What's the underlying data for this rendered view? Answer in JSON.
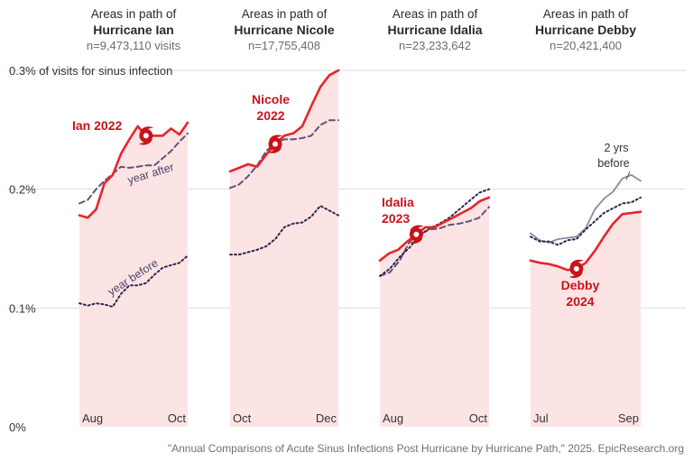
{
  "chart_data": {
    "type": "line",
    "ylabel": "0.3% of visits for sinus infection",
    "ylim": [
      0,
      0.3
    ],
    "yticks": [
      {
        "value": 0,
        "label": "0%"
      },
      {
        "value": 0.1,
        "label": "0.1%"
      },
      {
        "value": 0.2,
        "label": "0.2%"
      },
      {
        "value": 0.3,
        "label": "0.3% of visits for sinus infection"
      }
    ],
    "colors": {
      "current": "#e8242b",
      "after": "#5c5478",
      "before": "#2b2650",
      "two_years": "#8a8a9e",
      "fill": "#fde4e4",
      "highlight": "#c8131b"
    },
    "panels": [
      {
        "title_line1": "Areas in path of",
        "title_line2": "Hurricane Ian",
        "n": "n=9,473,110 visits",
        "x_start_label": "Aug",
        "x_end_label": "Oct",
        "label": "Ian 2022",
        "series": [
          {
            "name": "2022 (current)",
            "style": "current",
            "values": [
              0.178,
              0.176,
              0.183,
              0.205,
              0.212,
              0.23,
              0.242,
              0.253,
              0.245,
              0.245,
              0.245,
              0.251,
              0.246,
              0.256
            ]
          },
          {
            "name": "year after",
            "style": "after",
            "values": [
              0.188,
              0.191,
              0.2,
              0.207,
              0.213,
              0.219,
              0.218,
              0.219,
              0.22,
              0.22,
              0.226,
              0.232,
              0.24,
              0.247
            ]
          },
          {
            "name": "year before",
            "style": "before",
            "values": [
              0.104,
              0.102,
              0.104,
              0.103,
              0.101,
              0.112,
              0.119,
              0.119,
              0.121,
              0.128,
              0.134,
              0.136,
              0.138,
              0.144
            ]
          }
        ],
        "series_labels": [
          {
            "text": "year after",
            "series": 1,
            "at": 0.68
          },
          {
            "text": "year before",
            "series": 2,
            "at": 0.5
          }
        ]
      },
      {
        "title_line1": "Areas in path of",
        "title_line2": "Hurricane Nicole",
        "n": "n=17,755,408",
        "x_start_label": "Oct",
        "x_end_label": "Dec",
        "label": "Nicole 2022",
        "series": [
          {
            "name": "2022 (current)",
            "style": "current",
            "values": [
              0.215,
              0.218,
              0.221,
              0.219,
              0.229,
              0.238,
              0.245,
              0.247,
              0.253,
              0.27,
              0.286,
              0.296,
              0.3
            ]
          },
          {
            "name": "year after",
            "style": "after",
            "values": [
              0.201,
              0.204,
              0.211,
              0.22,
              0.232,
              0.239,
              0.242,
              0.242,
              0.243,
              0.245,
              0.254,
              0.258,
              0.258
            ]
          },
          {
            "name": "year before",
            "style": "before",
            "values": [
              0.145,
              0.145,
              0.147,
              0.149,
              0.152,
              0.158,
              0.168,
              0.171,
              0.172,
              0.177,
              0.186,
              0.182,
              0.178
            ]
          }
        ],
        "series_labels": []
      },
      {
        "title_line1": "Areas in path of",
        "title_line2": "Hurricane Idalia",
        "n": "n=23,233,642",
        "x_start_label": "Aug",
        "x_end_label": "Oct",
        "label": "Idalia 2023",
        "series": [
          {
            "name": "2023 (current)",
            "style": "current",
            "values": [
              0.14,
              0.146,
              0.149,
              0.156,
              0.162,
              0.168,
              0.168,
              0.172,
              0.176,
              0.18,
              0.184,
              0.19,
              0.193
            ]
          },
          {
            "name": "year after",
            "style": "after",
            "values": [
              0.127,
              0.13,
              0.14,
              0.156,
              0.162,
              0.166,
              0.167,
              0.17,
              0.171,
              0.173,
              0.176,
              0.185
            ]
          },
          {
            "name": "year before",
            "style": "before",
            "values": [
              0.127,
              0.133,
              0.143,
              0.151,
              0.161,
              0.167,
              0.171,
              0.176,
              0.183,
              0.19,
              0.197,
              0.2
            ]
          }
        ],
        "series_labels": []
      },
      {
        "title_line1": "Areas in path of",
        "title_line2": "Hurricane Debby",
        "n": "n=20,421,400",
        "x_start_label": "Jul",
        "x_end_label": "Sep",
        "label": "Debby 2024",
        "series": [
          {
            "name": "2024 (current)",
            "style": "current",
            "values": [
              0.14,
              0.138,
              0.137,
              0.135,
              0.132,
              0.133,
              0.138,
              0.148,
              0.16,
              0.171,
              0.179,
              0.18,
              0.181
            ]
          },
          {
            "name": "2 yrs before",
            "style": "two_years",
            "values": [
              0.163,
              0.157,
              0.155,
              0.158,
              0.159,
              0.16,
              0.167,
              0.183,
              0.192,
              0.198,
              0.209,
              0.212,
              0.207
            ]
          },
          {
            "name": "year before",
            "style": "before",
            "values": [
              0.16,
              0.156,
              0.156,
              0.153,
              0.157,
              0.158,
              0.166,
              0.173,
              0.18,
              0.184,
              0.188,
              0.189,
              0.193
            ]
          }
        ],
        "series_labels": []
      }
    ],
    "annotations": [
      {
        "text_line1": "2 yrs",
        "text_line2": "before",
        "panel": 3
      }
    ]
  },
  "source": "\"Annual Comparisons of Acute Sinus Infections Post Hurricane by Hurricane Path,\" 2025. EpicResearch.org"
}
